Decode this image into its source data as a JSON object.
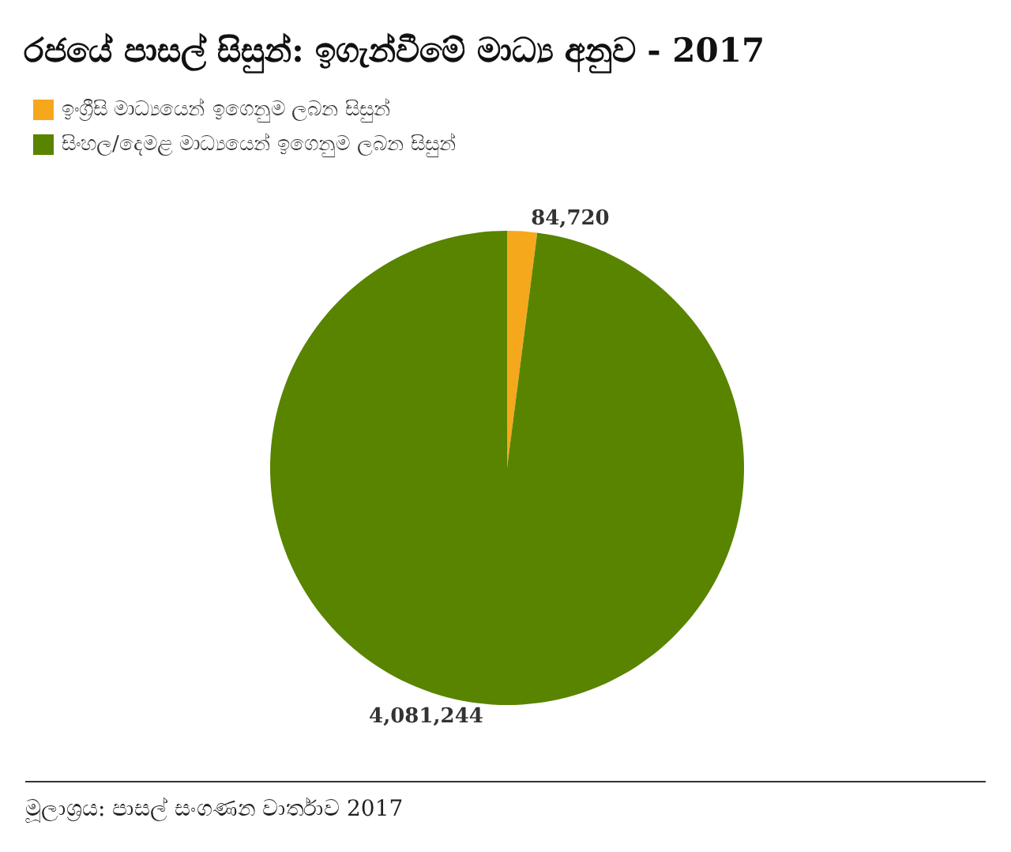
{
  "chart_data": {
    "type": "pie",
    "title": "රජයේ පාසල් සිසුන්: ඉගැන්වීමේ මාධ්‍ය අනුව - 2017",
    "categories": [
      "ඉංග්‍රීසි මාධ්‍යයෙන් ඉගෙනුම ලබන සිසුන්",
      "සිංහල/දෙමළ මාධ්‍යයෙන් ඉගෙනුම ලබන සිසුන්"
    ],
    "values": [
      84720,
      4081244
    ],
    "colors": [
      "#f5a81c",
      "#588400"
    ],
    "value_labels": [
      "84,720",
      "4,081,244"
    ],
    "legend": "top left",
    "annotations": [
      "මූලාශ්‍රය: පාසල් සංගණන වාර්තාව 2017"
    ]
  }
}
